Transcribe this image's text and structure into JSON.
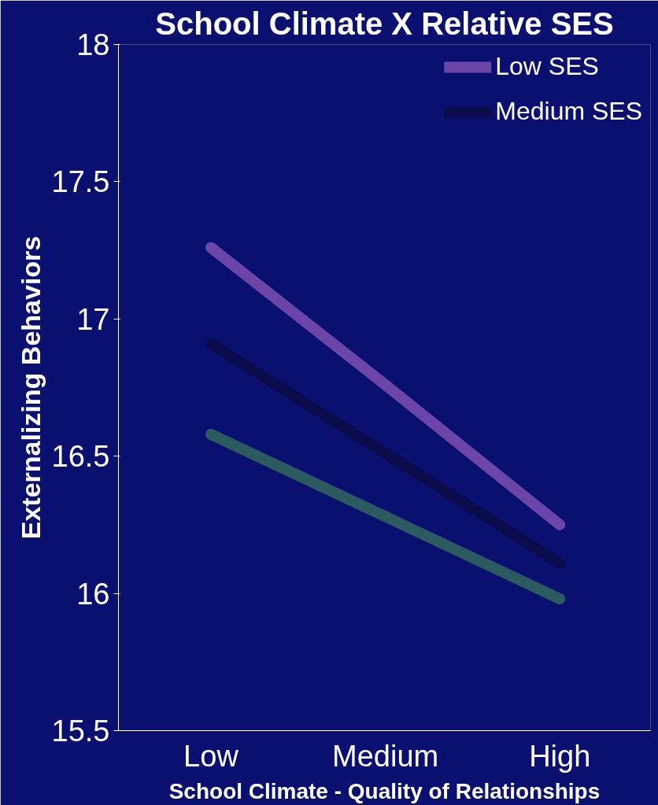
{
  "chart_data": {
    "type": "line",
    "title": "School Climate X Relative SES",
    "xlabel": "School Climate - Quality of Relationships",
    "ylabel": "Externalizing Behaviors",
    "categories": [
      "Low",
      "Medium",
      "High"
    ],
    "series": [
      {
        "name": "Low SES",
        "color": "#6b45a8",
        "values": [
          17.26,
          16.76,
          16.25
        ]
      },
      {
        "name": "Medium SES",
        "color": "#0b0c4c",
        "values": [
          16.91,
          16.51,
          16.11
        ]
      },
      {
        "color": "#2b5a60",
        "values": [
          16.58,
          16.28,
          15.98
        ]
      }
    ],
    "ylim": [
      15.5,
      18
    ],
    "yticks": [
      15.5,
      16,
      16.5,
      17,
      17.5,
      18
    ],
    "grid": false,
    "legend": "top right",
    "marker": "none",
    "line_style": "solid"
  }
}
